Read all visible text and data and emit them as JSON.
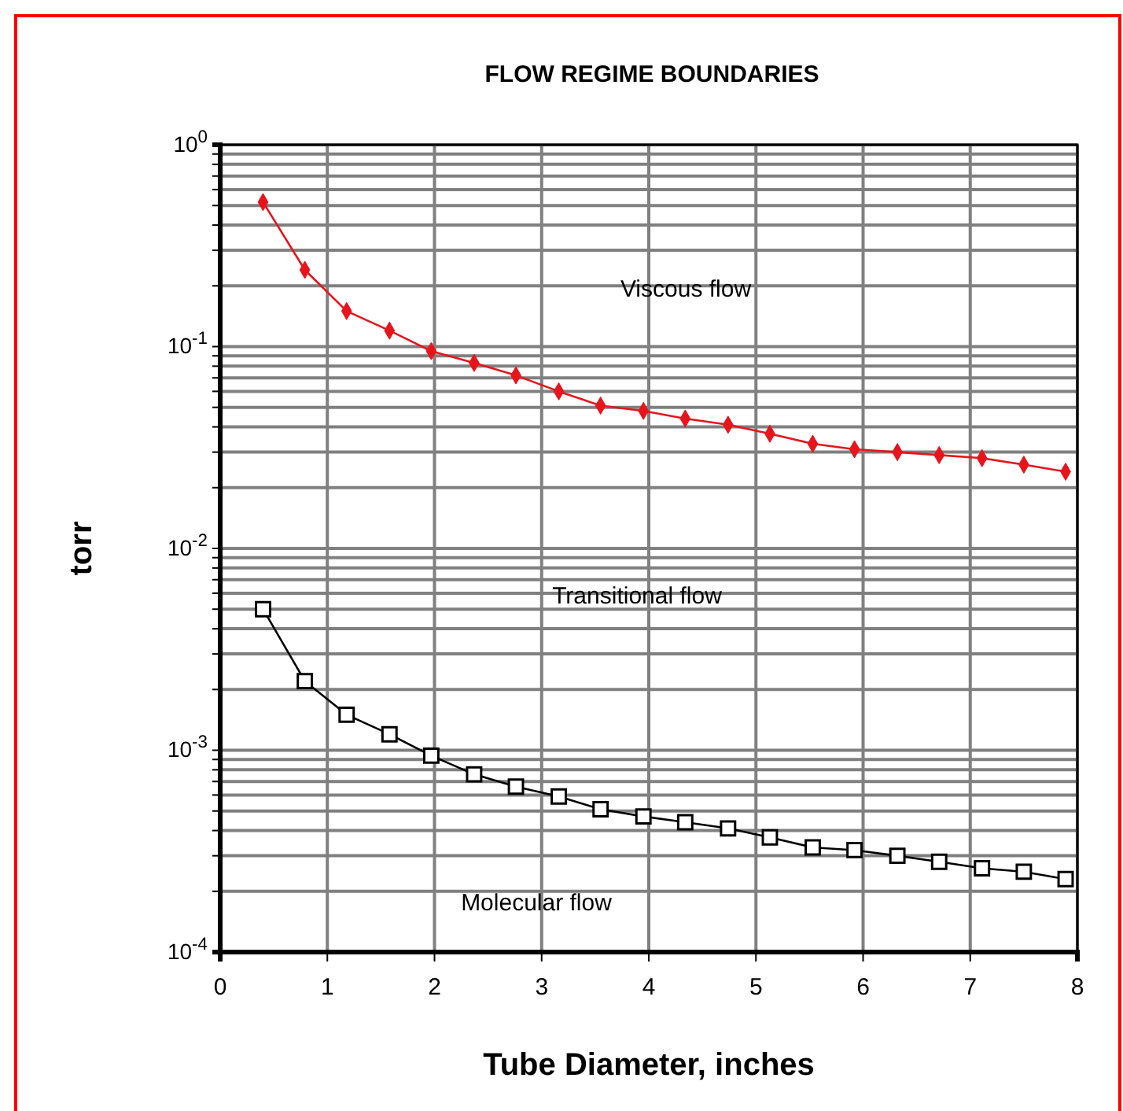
{
  "chart_data": {
    "type": "line",
    "title": "FLOW REGIME BOUNDARIES",
    "xlabel": "Tube Diameter, inches",
    "ylabel": "torr",
    "x": [
      0.4,
      0.79,
      1.18,
      1.58,
      1.97,
      2.37,
      2.76,
      3.16,
      3.55,
      3.95,
      4.34,
      4.74,
      5.13,
      5.53,
      5.92,
      6.32,
      6.71,
      7.11,
      7.5,
      7.89
    ],
    "series": [
      {
        "color": "#e8141c",
        "marker": "diamond",
        "values": [
          0.52,
          0.24,
          0.15,
          0.12,
          0.095,
          0.083,
          0.072,
          0.06,
          0.051,
          0.048,
          0.044,
          0.041,
          0.037,
          0.033,
          0.031,
          0.03,
          0.029,
          0.028,
          0.026,
          0.024
        ]
      },
      {
        "color": "#000000",
        "marker": "square",
        "values": [
          0.005,
          0.0022,
          0.0015,
          0.0012,
          0.00094,
          0.00076,
          0.00066,
          0.00059,
          0.00051,
          0.00047,
          0.00044,
          0.00041,
          0.00037,
          0.00033,
          0.00032,
          0.0003,
          0.00028,
          0.00026,
          0.00025,
          0.00023
        ]
      }
    ],
    "log": "y",
    "grid": true,
    "line_style": "solid",
    "xlim": [
      0,
      8
    ],
    "xticks": [
      0,
      1,
      2,
      3,
      4,
      5,
      6,
      7,
      8
    ],
    "ylim": [
      0.0001,
      1
    ],
    "yticks": [
      {
        "value": 0.0001,
        "label": "10$^{-4}$"
      },
      {
        "value": 0.0002,
        "label": null
      },
      {
        "value": 0.0003,
        "label": null
      },
      {
        "value": 0.0004,
        "label": null
      },
      {
        "value": 0.0005,
        "label": null
      },
      {
        "value": 0.0006,
        "label": null
      },
      {
        "value": 0.0007,
        "label": null
      },
      {
        "value": 0.0008,
        "label": null
      },
      {
        "value": 0.0009,
        "label": null
      },
      {
        "value": 0.001,
        "label": "10$^{-3}$"
      },
      {
        "value": 0.002,
        "label": null
      },
      {
        "value": 0.003,
        "label": null
      },
      {
        "value": 0.004,
        "label": null
      },
      {
        "value": 0.005,
        "label": null
      },
      {
        "value": 0.006,
        "label": null
      },
      {
        "value": 0.007,
        "label": null
      },
      {
        "value": 0.008,
        "label": null
      },
      {
        "value": 0.009,
        "label": null
      },
      {
        "value": 0.01,
        "label": "10$^{-2}$"
      },
      {
        "value": 0.02,
        "label": null
      },
      {
        "value": 0.03,
        "label": null
      },
      {
        "value": 0.04,
        "label": null
      },
      {
        "value": 0.05,
        "label": null
      },
      {
        "value": 0.06,
        "label": null
      },
      {
        "value": 0.07,
        "label": null
      },
      {
        "value": 0.08,
        "label": null
      },
      {
        "value": 0.09,
        "label": null
      },
      {
        "value": 0.1,
        "label": "10$^{-1}$"
      },
      {
        "value": 0.2,
        "label": null
      },
      {
        "value": 0.3,
        "label": null
      },
      {
        "value": 0.4,
        "label": null
      },
      {
        "value": 0.5,
        "label": null
      },
      {
        "value": 0.6,
        "label": null
      },
      {
        "value": 0.7,
        "label": null
      },
      {
        "value": 0.8,
        "label": null
      },
      {
        "value": 0.9,
        "label": null
      },
      {
        "value": 1,
        "label": "10$^{0}$"
      }
    ],
    "annotations": [
      "Viscous flow",
      "Transitional flow",
      "Molecular flow"
    ]
  }
}
